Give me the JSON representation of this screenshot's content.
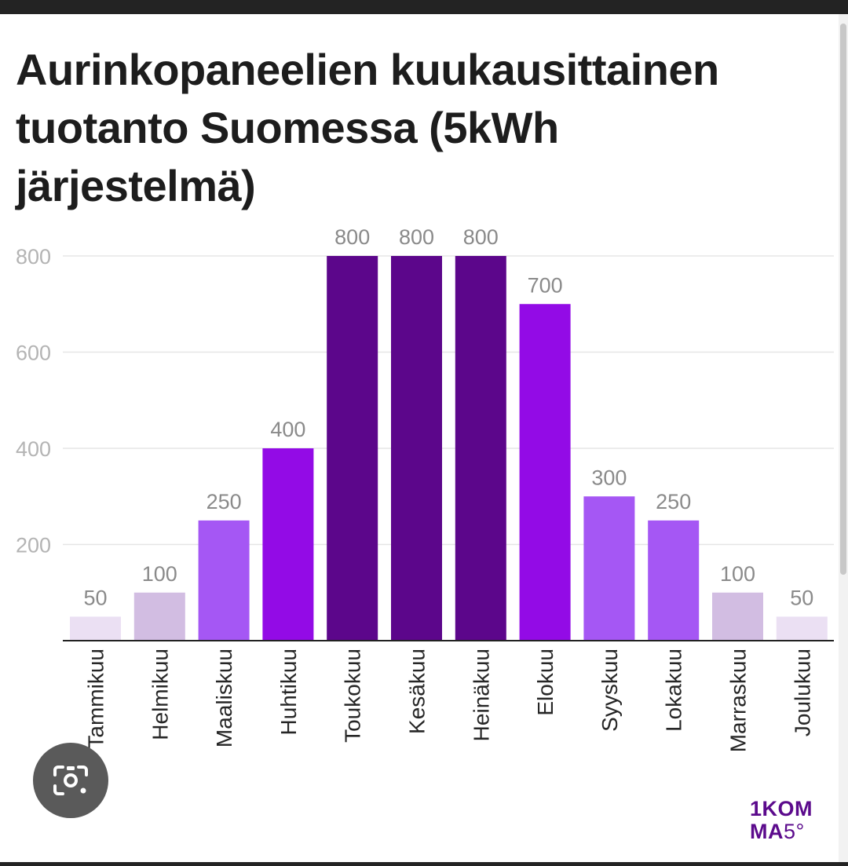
{
  "chart_data": {
    "type": "bar",
    "title": "Aurinkopaneelien kuukausittainen tuotanto Suomessa (5kWh järjestelmä)",
    "categories": [
      "Tammikuu",
      "Helmikuu",
      "Maaliskuu",
      "Huhtikuu",
      "Toukokuu",
      "Kesäkuu",
      "Heinäkuu",
      "Elokuu",
      "Syyskuu",
      "Lokakuu",
      "Marraskuu",
      "Joulukuu"
    ],
    "values": [
      50,
      100,
      250,
      400,
      800,
      800,
      800,
      700,
      300,
      250,
      100,
      50
    ],
    "value_labels": [
      "50",
      "100",
      "250",
      "400",
      "800",
      "800",
      "800",
      "700",
      "300",
      "250",
      "100",
      "50"
    ],
    "bar_colors": [
      "#ebe0f3",
      "#d2bde2",
      "#a557f4",
      "#930be6",
      "#5c068b",
      "#5c068b",
      "#5c068b",
      "#930be6",
      "#a557f4",
      "#a557f4",
      "#d2bde2",
      "#ebe0f3"
    ],
    "y_ticks": [
      200,
      400,
      600,
      800
    ],
    "y_tick_labels": [
      "200",
      "400",
      "600",
      "800"
    ],
    "ylim": [
      0,
      800
    ],
    "grid": true,
    "xlabel": "",
    "ylabel": ""
  },
  "logo": {
    "line1": "1KOM",
    "line2_bold": "MA",
    "line2_thin": "5°"
  },
  "lens_button": {
    "icon": "camera-search-icon"
  },
  "colors": {
    "title": "#1d1d1d",
    "grid": "#e6e6e6",
    "axis": "#222222",
    "brand": "#5b0a8c"
  }
}
